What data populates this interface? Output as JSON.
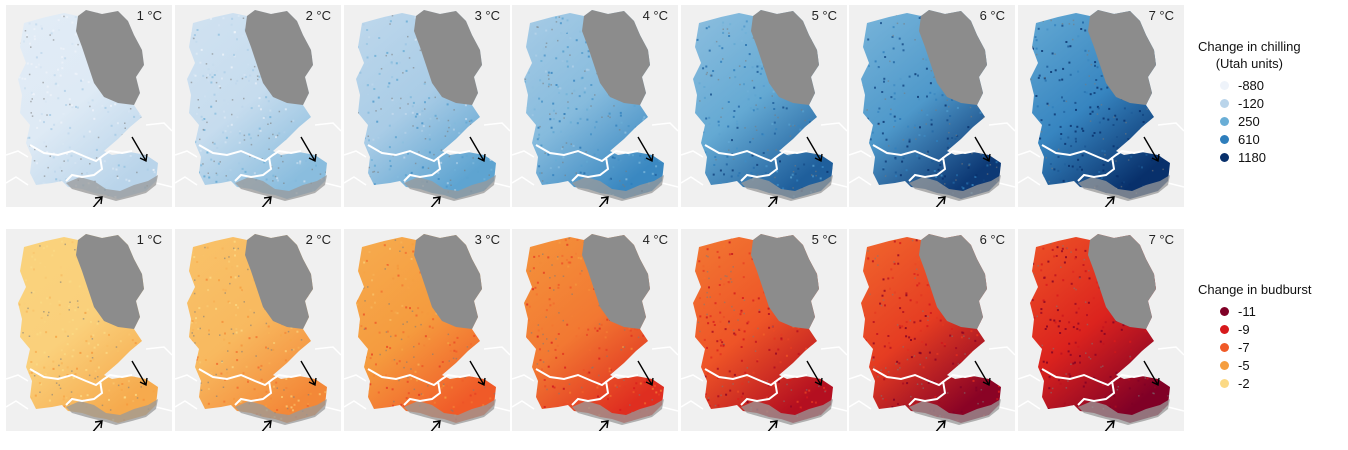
{
  "rows": [
    {
      "id": "chilling",
      "panels": [
        "1 °C",
        "2 °C",
        "3 °C",
        "4 °C",
        "5 °C",
        "6 °C",
        "7 °C"
      ],
      "legend": {
        "title_line1": "Change in chilling",
        "title_line2": "(Utah units)",
        "items": [
          {
            "label": "-880",
            "color": "#eef3fa"
          },
          {
            "label": "-120",
            "color": "#b9d4ea"
          },
          {
            "label": "250",
            "color": "#6aaed6"
          },
          {
            "label": "610",
            "color": "#2e7ebc"
          },
          {
            "label": "1180",
            "color": "#08306b"
          }
        ]
      },
      "map_levels": [
        0.1,
        0.25,
        0.4,
        0.55,
        0.7,
        0.82,
        0.95
      ]
    },
    {
      "id": "budburst",
      "panels": [
        "1 °C",
        "2 °C",
        "3 °C",
        "4 °C",
        "5 °C",
        "6 °C",
        "7 °C"
      ],
      "legend": {
        "title_line1": "Change in budburst",
        "items": [
          {
            "label": "-11",
            "color": "#800026"
          },
          {
            "label": "-9",
            "color": "#d7191c"
          },
          {
            "label": "-7",
            "color": "#f05a28"
          },
          {
            "label": "-5",
            "color": "#f59e3f"
          },
          {
            "label": "-2",
            "color": "#fbd985"
          }
        ]
      },
      "map_levels": [
        0.05,
        0.18,
        0.35,
        0.52,
        0.7,
        0.82,
        0.95
      ]
    }
  ],
  "colors": {
    "panel_background": "#f0f0f0",
    "no_data_region": "#8c8c8c",
    "border_line": "#ffffff",
    "arrow": "#000000"
  }
}
